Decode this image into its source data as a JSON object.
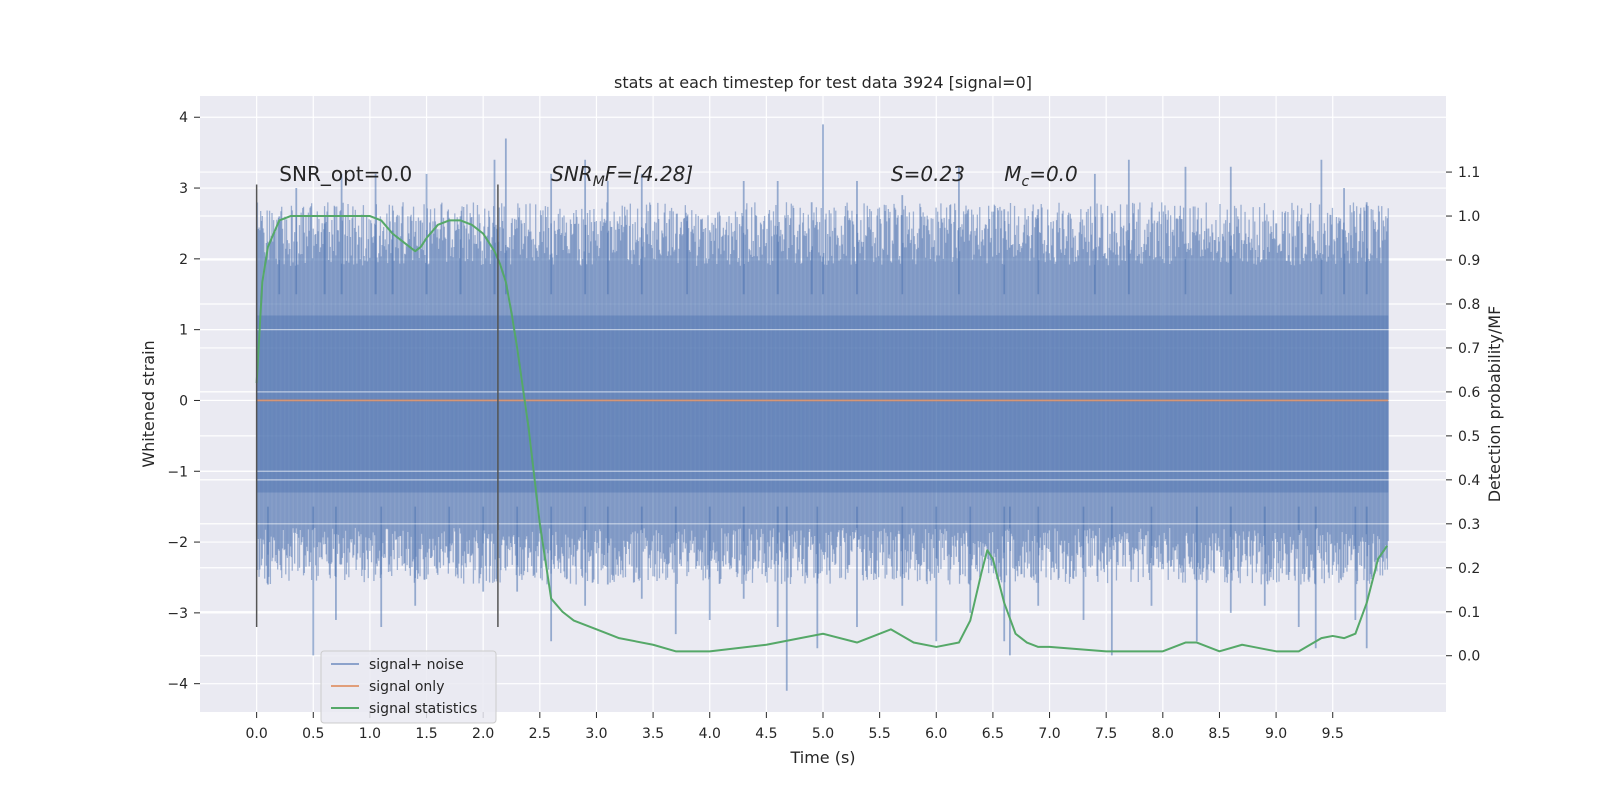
{
  "chart_data": {
    "type": "line",
    "title": "stats at each timestep for test data 3924 [signal=0]",
    "xlabel": "Time (s)",
    "ylabel": "Whitened strain",
    "y2label": "Detection probability/MF",
    "xlim": [
      -0.5,
      10.5
    ],
    "ylim": [
      -4.4,
      4.3
    ],
    "y2lim": [
      -0.128,
      1.273
    ],
    "x_ticks": [
      0.0,
      0.5,
      1.0,
      1.5,
      2.0,
      2.5,
      3.0,
      3.5,
      4.0,
      4.5,
      5.0,
      5.5,
      6.0,
      6.5,
      7.0,
      7.5,
      8.0,
      8.5,
      9.0,
      9.5
    ],
    "x_tick_labels": [
      "0.0",
      "0.5",
      "1.0",
      "1.5",
      "2.0",
      "2.5",
      "3.0",
      "3.5",
      "4.0",
      "4.5",
      "5.0",
      "5.5",
      "6.0",
      "6.5",
      "7.0",
      "7.5",
      "8.0",
      "8.5",
      "9.0",
      "9.5"
    ],
    "y_ticks": [
      4,
      3,
      2,
      1,
      0,
      -1,
      -2,
      -3,
      -4
    ],
    "y_tick_labels": [
      "4",
      "3",
      "2",
      "1",
      "0",
      "−1",
      "−2",
      "−3",
      "−4"
    ],
    "y2_ticks": [
      1.1,
      1.0,
      0.9,
      0.8,
      0.7,
      0.6,
      0.5,
      0.4,
      0.3,
      0.2,
      0.1,
      0.0
    ],
    "y2_tick_labels": [
      "1.1",
      "1.0",
      "0.9",
      "0.8",
      "0.7",
      "0.6",
      "0.5",
      "0.4",
      "0.3",
      "0.2",
      "0.1",
      "0.0"
    ],
    "grid": true,
    "legend_position": "lower-left",
    "colors": {
      "background": "#eaeaf2",
      "grid": "#ffffff",
      "noise": "#4c72b0",
      "signal_only": "#dd8452",
      "statistics": "#55a868",
      "markers": "#555555"
    },
    "series": [
      {
        "name": "signal+ noise",
        "axis": "left",
        "style": "band",
        "x_range": [
          0.0,
          9.99
        ],
        "dense_envelope": [
          -1.9,
          2.0
        ],
        "core_band": [
          -1.3,
          1.2
        ],
        "peaks": [
          [
            0.2,
            2.6
          ],
          [
            0.35,
            3.0
          ],
          [
            0.6,
            2.5
          ],
          [
            0.75,
            3.2
          ],
          [
            1.05,
            3.2
          ],
          [
            1.2,
            2.4
          ],
          [
            1.5,
            3.2
          ],
          [
            1.8,
            2.6
          ],
          [
            2.1,
            3.4
          ],
          [
            2.2,
            3.7
          ],
          [
            2.6,
            3.2
          ],
          [
            2.9,
            3.4
          ],
          [
            3.1,
            3.1
          ],
          [
            3.4,
            3.2
          ],
          [
            3.8,
            2.6
          ],
          [
            4.3,
            3.1
          ],
          [
            4.6,
            3.1
          ],
          [
            4.9,
            2.8
          ],
          [
            5.0,
            3.9
          ],
          [
            5.3,
            3.1
          ],
          [
            5.7,
            2.9
          ],
          [
            6.2,
            3.3
          ],
          [
            6.6,
            2.7
          ],
          [
            6.9,
            2.7
          ],
          [
            7.4,
            3.2
          ],
          [
            7.7,
            3.4
          ],
          [
            8.2,
            3.3
          ],
          [
            8.6,
            3.3
          ],
          [
            9.4,
            3.4
          ],
          [
            9.6,
            3.0
          ],
          [
            9.8,
            2.8
          ]
        ],
        "troughs": [
          [
            0.1,
            -2.6
          ],
          [
            0.5,
            -3.6
          ],
          [
            0.7,
            -3.1
          ],
          [
            1.1,
            -3.2
          ],
          [
            1.4,
            -2.9
          ],
          [
            1.7,
            -2.3
          ],
          [
            2.0,
            -2.7
          ],
          [
            2.3,
            -2.7
          ],
          [
            2.6,
            -3.4
          ],
          [
            2.9,
            -2.9
          ],
          [
            3.1,
            -2.6
          ],
          [
            3.4,
            -2.8
          ],
          [
            3.7,
            -3.3
          ],
          [
            4.0,
            -3.1
          ],
          [
            4.3,
            -2.8
          ],
          [
            4.6,
            -3.2
          ],
          [
            4.68,
            -4.1
          ],
          [
            4.95,
            -3.5
          ],
          [
            5.3,
            -3.2
          ],
          [
            5.7,
            -2.9
          ],
          [
            6.0,
            -3.4
          ],
          [
            6.3,
            -3.0
          ],
          [
            6.6,
            -3.4
          ],
          [
            6.65,
            -3.6
          ],
          [
            6.9,
            -2.9
          ],
          [
            7.3,
            -3.1
          ],
          [
            7.55,
            -3.6
          ],
          [
            7.9,
            -2.9
          ],
          [
            8.3,
            -3.4
          ],
          [
            8.6,
            -3.0
          ],
          [
            8.9,
            -2.9
          ],
          [
            9.2,
            -3.2
          ],
          [
            9.35,
            -3.5
          ],
          [
            9.7,
            -3.1
          ],
          [
            9.8,
            -3.5
          ]
        ]
      },
      {
        "name": "signal only",
        "axis": "left",
        "x": [
          0.0,
          9.99
        ],
        "y": [
          0.0,
          0.0
        ]
      },
      {
        "name": "signal statistics",
        "axis": "right",
        "x": [
          0.0,
          0.05,
          0.1,
          0.15,
          0.2,
          0.3,
          0.5,
          0.8,
          1.0,
          1.1,
          1.2,
          1.3,
          1.4,
          1.45,
          1.5,
          1.6,
          1.7,
          1.8,
          1.9,
          2.0,
          2.1,
          2.15,
          2.2,
          2.25,
          2.3,
          2.4,
          2.5,
          2.6,
          2.7,
          2.8,
          3.0,
          3.2,
          3.5,
          3.7,
          4.0,
          4.5,
          4.8,
          5.0,
          5.3,
          5.6,
          5.8,
          6.0,
          6.2,
          6.3,
          6.4,
          6.45,
          6.5,
          6.6,
          6.7,
          6.8,
          6.9,
          7.0,
          7.5,
          8.0,
          8.2,
          8.3,
          8.5,
          8.7,
          8.8,
          9.0,
          9.2,
          9.4,
          9.5,
          9.6,
          9.7,
          9.8,
          9.9,
          9.98
        ],
        "y": [
          0.62,
          0.85,
          0.93,
          0.96,
          0.99,
          1.0,
          1.0,
          1.0,
          1.0,
          0.99,
          0.96,
          0.94,
          0.92,
          0.93,
          0.95,
          0.98,
          0.99,
          0.99,
          0.98,
          0.96,
          0.92,
          0.89,
          0.85,
          0.78,
          0.7,
          0.52,
          0.3,
          0.13,
          0.1,
          0.08,
          0.06,
          0.04,
          0.025,
          0.01,
          0.01,
          0.025,
          0.04,
          0.05,
          0.03,
          0.06,
          0.03,
          0.02,
          0.03,
          0.08,
          0.19,
          0.24,
          0.22,
          0.12,
          0.05,
          0.03,
          0.02,
          0.02,
          0.01,
          0.01,
          0.03,
          0.03,
          0.01,
          0.025,
          0.02,
          0.01,
          0.01,
          0.04,
          0.045,
          0.04,
          0.05,
          0.12,
          0.22,
          0.25
        ]
      }
    ],
    "event_markers": {
      "x": [
        0.0,
        2.13
      ],
      "y_range": [
        -3.2,
        3.05
      ]
    },
    "annotations": [
      {
        "text": "SNR_opt=0.0",
        "x": 0.2,
        "y": 3.1
      },
      {
        "text": "SNR<sub>M</sub>F=[4.28]",
        "x": 2.6,
        "y": 3.1,
        "style": "italic"
      },
      {
        "text": "S=0.23",
        "x": 5.6,
        "y": 3.1,
        "style": "italic"
      },
      {
        "text": "M<sub>c</sub>=0.0",
        "x": 6.6,
        "y": 3.1,
        "style": "italic"
      }
    ]
  }
}
